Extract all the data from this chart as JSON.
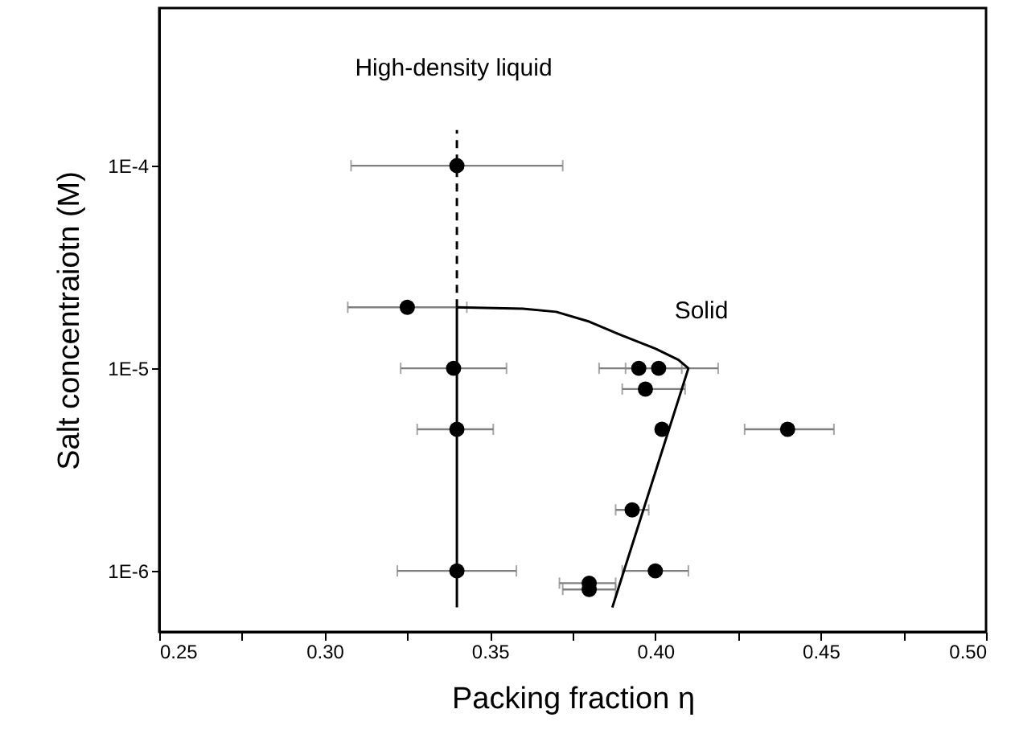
{
  "chart_data": {
    "type": "scatter",
    "xlabel": "Packing fraction  η",
    "ylabel": "Salt concentraiotn (M)",
    "log": "y",
    "xlim": [
      0.25,
      0.5
    ],
    "ylim": [
      5e-07,
      0.0006
    ],
    "xticks": [
      {
        "value": 0.25,
        "label": "0.25"
      },
      {
        "value": 0.275,
        "label": null
      },
      {
        "value": 0.3,
        "label": "0.30"
      },
      {
        "value": 0.325,
        "label": null
      },
      {
        "value": 0.35,
        "label": "0.35"
      },
      {
        "value": 0.375,
        "label": null
      },
      {
        "value": 0.4,
        "label": "0.40"
      },
      {
        "value": 0.425,
        "label": null
      },
      {
        "value": 0.45,
        "label": "0.45"
      },
      {
        "value": 0.475,
        "label": null
      },
      {
        "value": 0.5,
        "label": "0.50"
      }
    ],
    "yticks": [
      {
        "value": 1e-06,
        "label": "1E-6"
      },
      {
        "value": 1e-05,
        "label": "1E-5"
      },
      {
        "value": 0.0001,
        "label": "1E-4"
      }
    ],
    "series": [
      {
        "marker": "circle",
        "color": "#000000",
        "x": [
          0.34,
          0.325,
          0.339,
          0.395,
          0.401,
          0.397,
          0.34,
          0.402,
          0.44,
          0.393,
          0.34,
          0.4,
          0.38,
          0.38
        ],
        "values": [
          0.0001,
          2e-05,
          1e-05,
          1e-05,
          1e-05,
          7.9e-06,
          5e-06,
          5e-06,
          5e-06,
          2e-06,
          1e-06,
          1e-06,
          8.7e-07,
          8.1e-07
        ],
        "xerrors": [
          [
            0.308,
            0.372
          ],
          [
            0.307,
            0.343
          ],
          [
            0.323,
            0.355
          ],
          [
            0.383,
            0.408
          ],
          [
            0.391,
            0.419
          ],
          [
            0.39,
            0.409
          ],
          [
            0.328,
            0.351
          ],
          null,
          [
            0.427,
            0.454
          ],
          [
            0.388,
            0.398
          ],
          [
            0.322,
            0.358
          ],
          [
            0.39,
            0.41
          ],
          [
            0.371,
            0.388
          ],
          [
            0.372,
            0.388
          ]
        ]
      },
      {
        "type": "line",
        "color": "#000000",
        "line_style": "solid",
        "x": [
          0.34,
          0.34
        ],
        "values": [
          6.6e-07,
          2e-05
        ]
      },
      {
        "type": "line",
        "color": "#000000",
        "line_style": "dashed",
        "x": [
          0.34,
          0.34
        ],
        "values": [
          2e-05,
          0.00015
        ]
      },
      {
        "type": "line",
        "color": "#000000",
        "line_style": "solid",
        "x": [
          0.34,
          0.36,
          0.37,
          0.38,
          0.39,
          0.4,
          0.407,
          0.41,
          0.387
        ],
        "values": [
          2e-05,
          1.97e-05,
          1.9e-05,
          1.7e-05,
          1.45e-05,
          1.25e-05,
          1.1e-05,
          1e-05,
          6.6e-07
        ]
      }
    ],
    "annotations": [
      "High-density liquid",
      "Solid"
    ]
  }
}
